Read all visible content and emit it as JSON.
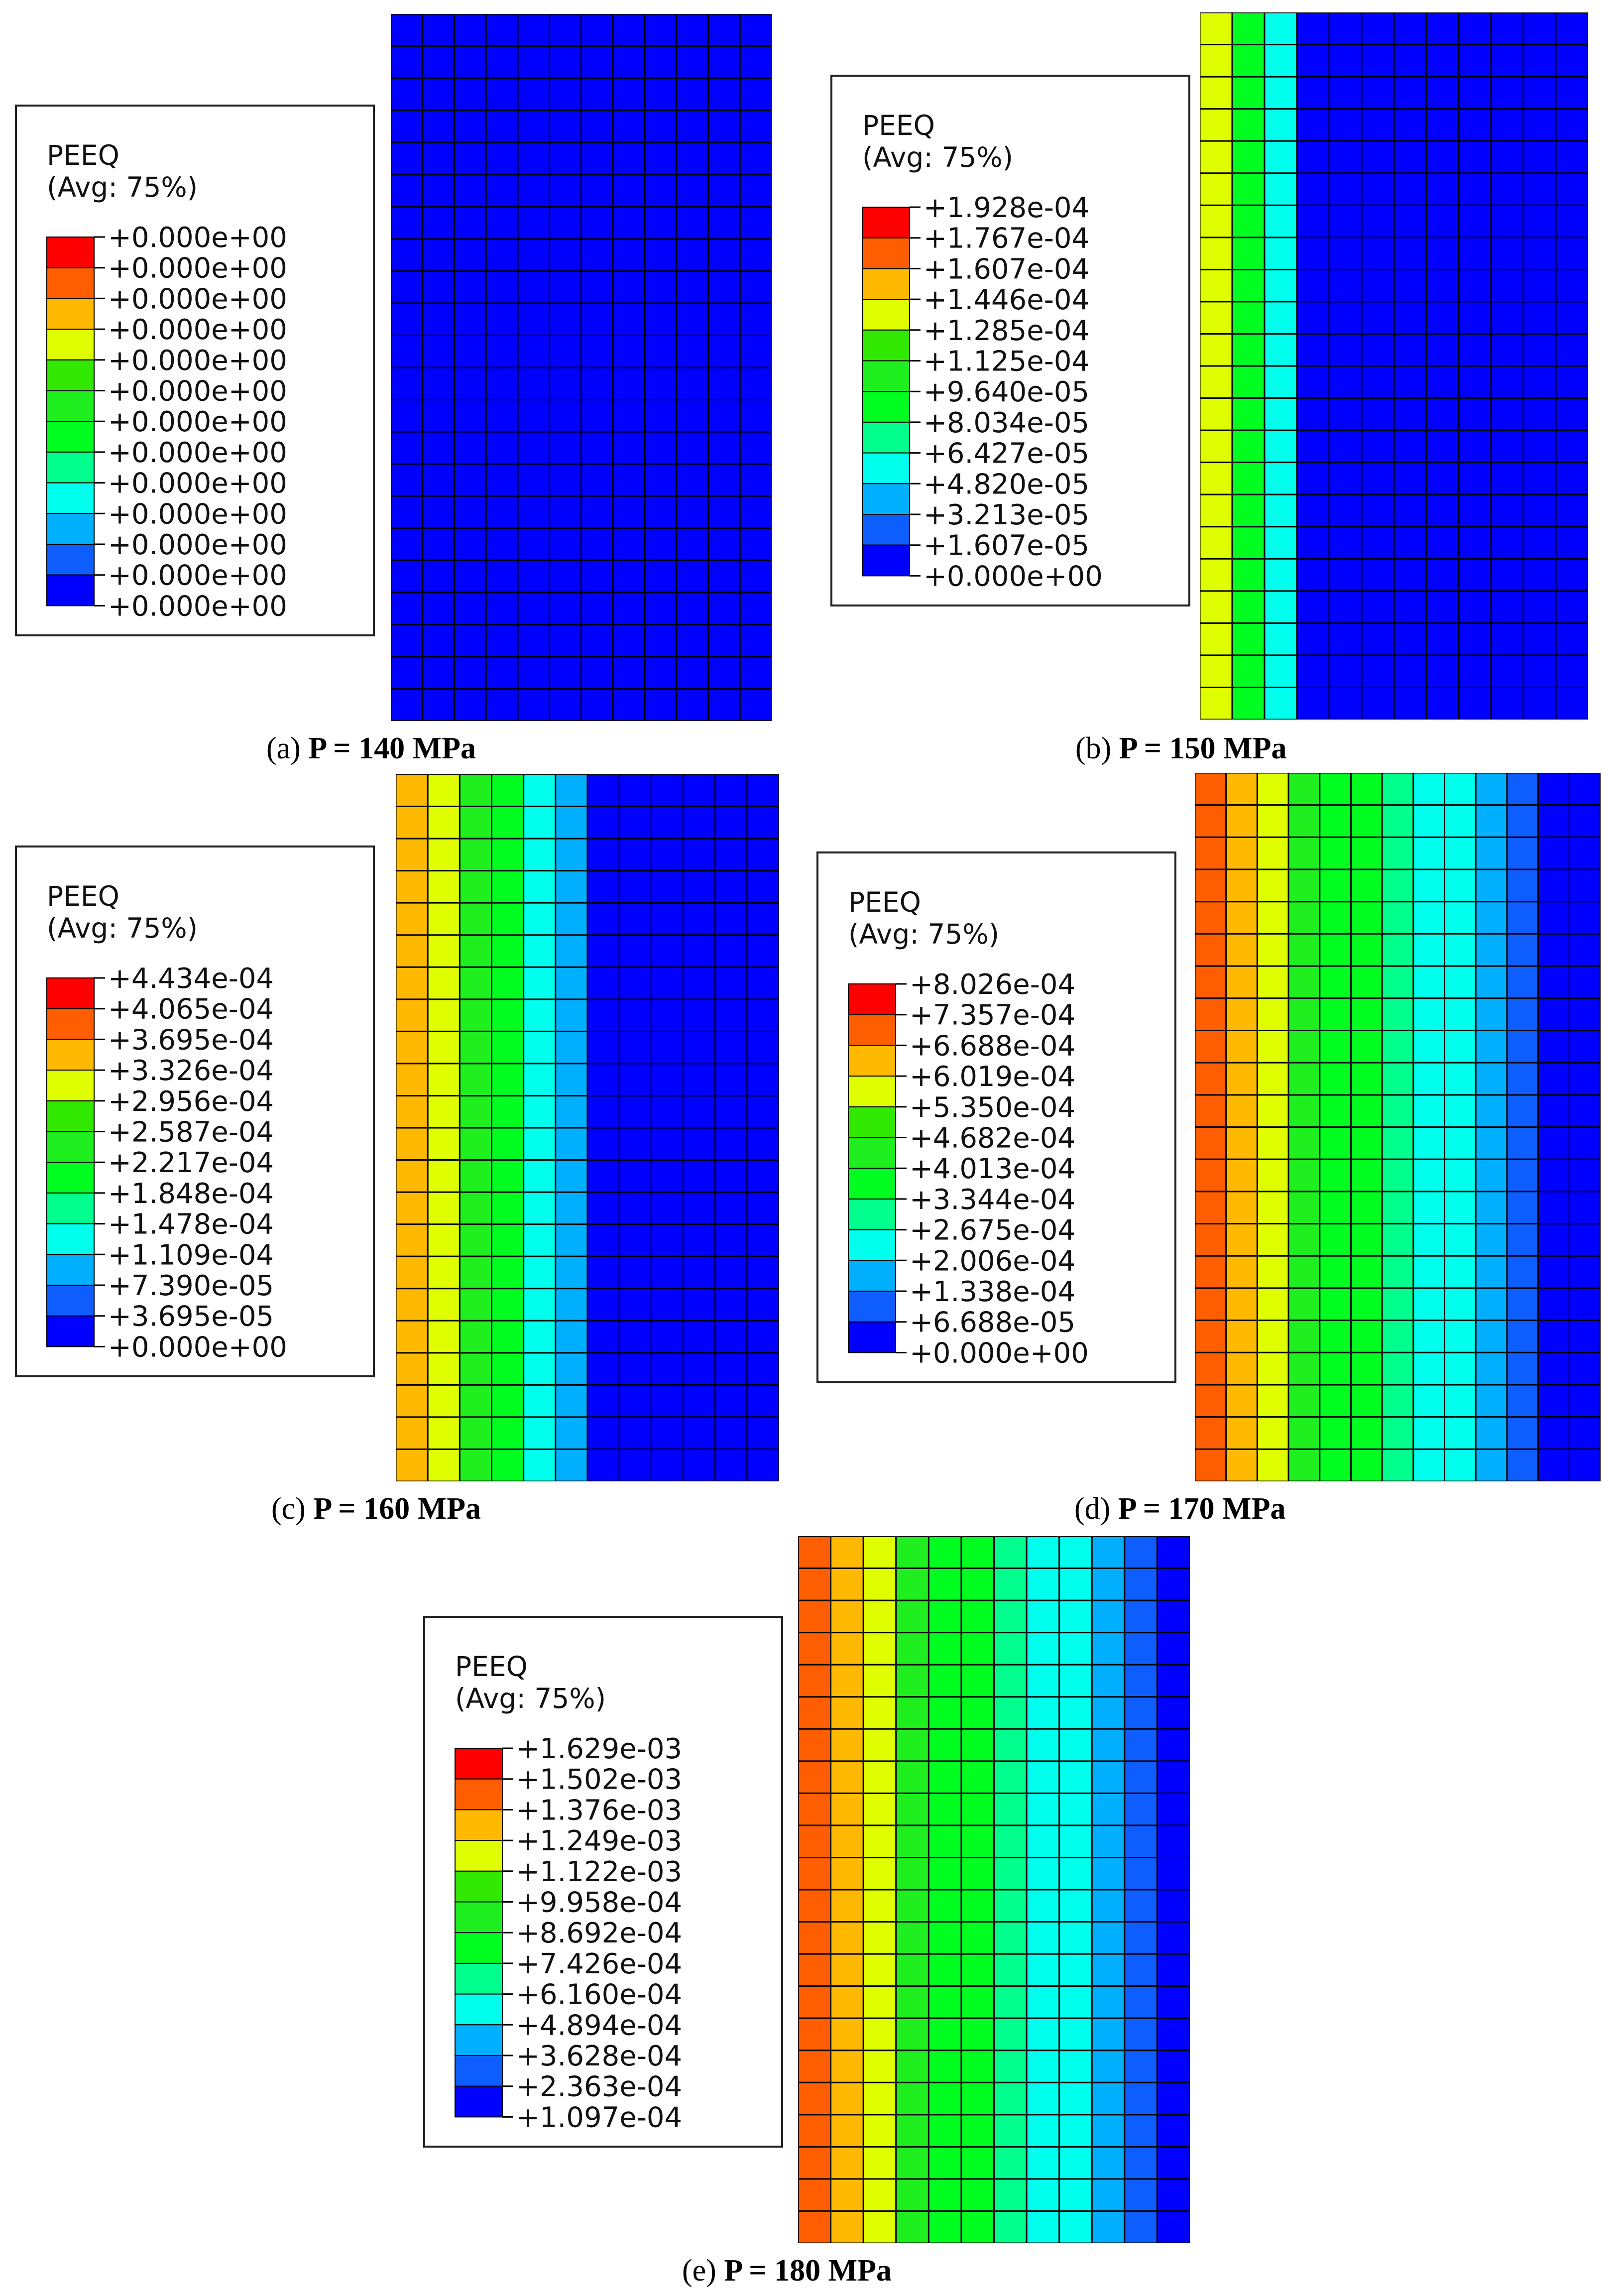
{
  "colors": {
    "scale": [
      "#0000ff",
      "#0e5dff",
      "#00b0ff",
      "#00ffed",
      "#00ff8c",
      "#00ff21",
      "#1fef1e",
      "#31e800",
      "#dfff00",
      "#ffb900",
      "#ff5e00",
      "#ff0000"
    ],
    "mesh": "#000000"
  },
  "panels": [
    {
      "id": "a",
      "variable": "PEEQ",
      "averaging": "(Avg: 75%)",
      "legend_values": [
        "+0.000e+00",
        "+0.000e+00",
        "+0.000e+00",
        "+0.000e+00",
        "+0.000e+00",
        "+0.000e+00",
        "+0.000e+00",
        "+0.000e+00",
        "+0.000e+00",
        "+0.000e+00",
        "+0.000e+00",
        "+0.000e+00",
        "+0.000e+00"
      ],
      "caption_letter": "(a)",
      "caption_label": "P = 140 MPa",
      "mesh_columns": 12,
      "mesh_rows": 22,
      "column_levels": [
        0,
        0,
        0,
        0,
        0,
        0,
        0,
        0,
        0,
        0,
        0,
        0
      ]
    },
    {
      "id": "b",
      "variable": "PEEQ",
      "averaging": "(Avg: 75%)",
      "legend_values": [
        "+1.928e-04",
        "+1.767e-04",
        "+1.607e-04",
        "+1.446e-04",
        "+1.285e-04",
        "+1.125e-04",
        "+9.640e-05",
        "+8.034e-05",
        "+6.427e-05",
        "+4.820e-05",
        "+3.213e-05",
        "+1.607e-05",
        "+0.000e+00"
      ],
      "caption_letter": "(b)",
      "caption_label": "P = 150 MPa",
      "mesh_columns": 12,
      "mesh_rows": 22,
      "column_levels": [
        8,
        5,
        3,
        0,
        0,
        0,
        0,
        0,
        0,
        0,
        0,
        0
      ]
    },
    {
      "id": "c",
      "variable": "PEEQ",
      "averaging": "(Avg: 75%)",
      "legend_values": [
        "+4.434e-04",
        "+4.065e-04",
        "+3.695e-04",
        "+3.326e-04",
        "+2.956e-04",
        "+2.587e-04",
        "+2.217e-04",
        "+1.848e-04",
        "+1.478e-04",
        "+1.109e-04",
        "+7.390e-05",
        "+3.695e-05",
        "+0.000e+00"
      ],
      "caption_letter": "(c)",
      "caption_label": "P = 160 MPa",
      "mesh_columns": 12,
      "mesh_rows": 22,
      "column_levels": [
        9,
        8,
        6,
        5,
        3,
        2,
        0,
        0,
        0,
        0,
        0,
        0
      ]
    },
    {
      "id": "d",
      "variable": "PEEQ",
      "averaging": "(Avg: 75%)",
      "legend_values": [
        "+8.026e-04",
        "+7.357e-04",
        "+6.688e-04",
        "+6.019e-04",
        "+5.350e-04",
        "+4.682e-04",
        "+4.013e-04",
        "+3.344e-04",
        "+2.675e-04",
        "+2.006e-04",
        "+1.338e-04",
        "+6.688e-05",
        "+0.000e+00"
      ],
      "caption_letter": "(d)",
      "caption_label": "P = 170 MPa",
      "mesh_columns": 13,
      "mesh_rows": 22,
      "column_levels": [
        10,
        9,
        8,
        6,
        5,
        5,
        4,
        3,
        3,
        2,
        1,
        0,
        0
      ]
    },
    {
      "id": "e",
      "variable": "PEEQ",
      "averaging": "(Avg: 75%)",
      "legend_values": [
        "+1.629e-03",
        "+1.502e-03",
        "+1.376e-03",
        "+1.249e-03",
        "+1.122e-03",
        "+9.958e-04",
        "+8.692e-04",
        "+7.426e-04",
        "+6.160e-04",
        "+4.894e-04",
        "+3.628e-04",
        "+2.363e-04",
        "+1.097e-04"
      ],
      "caption_letter": "(e)",
      "caption_label": "P = 180 MPa",
      "mesh_columns": 12,
      "mesh_rows": 22,
      "column_levels": [
        10,
        9,
        8,
        6,
        5,
        5,
        4,
        3,
        3,
        2,
        1,
        0
      ]
    }
  ]
}
